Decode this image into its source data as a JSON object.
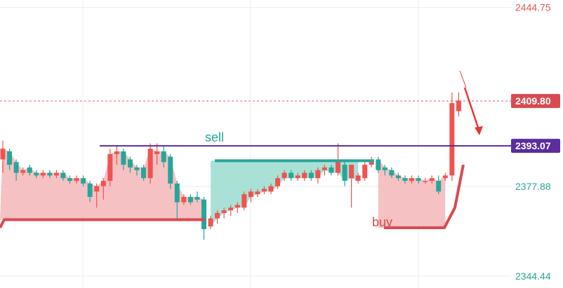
{
  "colors": {
    "up": "#ef5350",
    "down": "#26a69a",
    "bear_fill": "#f4b6b8",
    "bull_fill": "#9adccf",
    "level_line": "#5b2d9e",
    "grid": "#eeeeee",
    "axis_text": "#555555",
    "dashed_price": "#e06666",
    "arrow": "#e53935"
  },
  "price_axis": {
    "labels": [
      {
        "value": 2444.75,
        "text": "2444.75",
        "color": "#e05656"
      },
      {
        "value": 2377.88,
        "text": "2377.88",
        "color": "#26a69a"
      },
      {
        "value": 2344.44,
        "text": "2344.44",
        "color": "#26a69a"
      }
    ],
    "badges": [
      {
        "value": 2409.8,
        "text": "2409.80",
        "bg": "#d94b50"
      },
      {
        "value": 2393.07,
        "text": "2393.07",
        "bg": "#5b2d9e"
      }
    ]
  },
  "annotations": {
    "sell": "sell",
    "buy": "buy"
  },
  "chart_data": {
    "type": "candlestick",
    "ylim": [
      2340.0,
      2447.5
    ],
    "x_count": 69,
    "grid": true,
    "level_line": 2393.07,
    "last_price_line": 2409.8,
    "candles": [
      [
        2388,
        2392,
        2383,
        2395
      ],
      [
        2391,
        2386,
        2384,
        2392
      ],
      [
        2387,
        2383,
        2380,
        2388
      ],
      [
        2383,
        2384,
        2382,
        2385
      ],
      [
        2385,
        2383,
        2382,
        2386
      ],
      [
        2383,
        2382,
        2381,
        2384
      ],
      [
        2382,
        2383,
        2381,
        2384
      ],
      [
        2383,
        2382,
        2381,
        2384
      ],
      [
        2382,
        2383,
        2381,
        2384
      ],
      [
        2383,
        2381,
        2380,
        2384
      ],
      [
        2381,
        2380,
        2379,
        2382
      ],
      [
        2380,
        2381,
        2379,
        2382
      ],
      [
        2381,
        2379,
        2378,
        2382
      ],
      [
        2379,
        2374,
        2372,
        2380
      ],
      [
        2376,
        2378,
        2370,
        2379
      ],
      [
        2378,
        2380,
        2373,
        2381
      ],
      [
        2380,
        2390,
        2378,
        2392
      ],
      [
        2390,
        2391,
        2386,
        2393
      ],
      [
        2391,
        2386,
        2384,
        2392
      ],
      [
        2388,
        2385,
        2383,
        2389
      ],
      [
        2385,
        2384,
        2382,
        2386
      ],
      [
        2385,
        2381,
        2380,
        2386
      ],
      [
        2381,
        2392,
        2379,
        2394
      ],
      [
        2390,
        2391,
        2386,
        2394
      ],
      [
        2391,
        2387,
        2385,
        2393
      ],
      [
        2389,
        2379,
        2377,
        2390
      ],
      [
        2379,
        2372,
        2366,
        2380
      ],
      [
        2372,
        2374,
        2371,
        2375
      ],
      [
        2374,
        2372,
        2371,
        2375
      ],
      [
        2374,
        2373,
        2372,
        2376
      ],
      [
        2373,
        2362,
        2358,
        2374
      ],
      [
        2363,
        2366,
        2362,
        2367
      ],
      [
        2366,
        2368,
        2364,
        2369
      ],
      [
        2368,
        2369,
        2366,
        2370
      ],
      [
        2369,
        2370,
        2367,
        2371
      ],
      [
        2370,
        2371,
        2368,
        2372
      ],
      [
        2370,
        2375,
        2369,
        2376
      ],
      [
        2374,
        2376,
        2372,
        2377
      ],
      [
        2375,
        2376,
        2374,
        2377
      ],
      [
        2376,
        2377,
        2375,
        2378
      ],
      [
        2376,
        2378,
        2375,
        2379
      ],
      [
        2378,
        2381,
        2377,
        2382
      ],
      [
        2381,
        2383,
        2380,
        2384
      ],
      [
        2383,
        2381,
        2380,
        2384
      ],
      [
        2381,
        2382,
        2380,
        2383
      ],
      [
        2381,
        2383,
        2380,
        2384
      ],
      [
        2383,
        2381,
        2380,
        2384
      ],
      [
        2381,
        2384,
        2379,
        2385
      ],
      [
        2384,
        2385,
        2382,
        2386
      ],
      [
        2385,
        2383,
        2382,
        2386
      ],
      [
        2383,
        2387,
        2382,
        2394
      ],
      [
        2386,
        2380,
        2378,
        2388
      ],
      [
        2381,
        2386,
        2370,
        2386
      ],
      [
        2380,
        2382,
        2379,
        2383
      ],
      [
        2381,
        2386,
        2380,
        2387
      ],
      [
        2386,
        2388,
        2385,
        2389
      ],
      [
        2388,
        2384,
        2383,
        2389
      ],
      [
        2385,
        2384,
        2382,
        2386
      ],
      [
        2384,
        2382,
        2381,
        2385
      ],
      [
        2382,
        2381,
        2380,
        2383
      ],
      [
        2381,
        2380,
        2379,
        2382
      ],
      [
        2380,
        2381,
        2379,
        2382
      ],
      [
        2381,
        2380,
        2379,
        2382
      ],
      [
        2380,
        2380,
        2379,
        2381
      ],
      [
        2380,
        2381,
        2379,
        2382
      ],
      [
        2380,
        2376,
        2375,
        2382
      ],
      [
        2381,
        2382,
        2380,
        2383
      ],
      [
        2382,
        2409,
        2380,
        2413
      ],
      [
        2406,
        2410,
        2404,
        2413
      ]
    ],
    "price_labels": [
      "2444.75",
      "2409.80",
      "2393.07",
      "2377.88",
      "2344.44"
    ],
    "annotations": [
      "sell",
      "buy"
    ]
  }
}
